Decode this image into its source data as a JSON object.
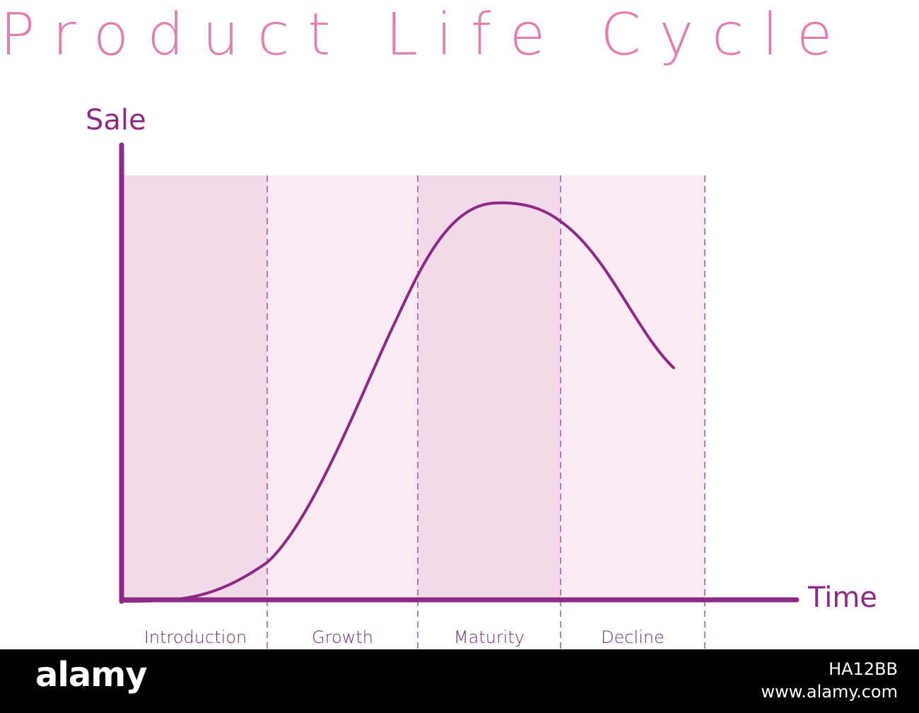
{
  "title": "Product Life Cycle",
  "colors": {
    "title": "#e17fb1",
    "axis": "#8e2a85",
    "curve": "#8e2a85",
    "divider": "#b3509c",
    "stage_fill_dark": "#f3dae8",
    "stage_fill_light": "#f9eaf3",
    "stage_label": "#6a2e7a"
  },
  "axes": {
    "y_label": "Sale",
    "x_label": "Time"
  },
  "stages": [
    {
      "label": "Introduction",
      "shade": "dark"
    },
    {
      "label": "Growth",
      "shade": "light"
    },
    {
      "label": "Maturity",
      "shade": "dark"
    },
    {
      "label": "Decline",
      "shade": "light"
    }
  ],
  "footer": {
    "logo": "alamy",
    "image_id": "HA12BB",
    "url": "www.alamy.com"
  }
}
